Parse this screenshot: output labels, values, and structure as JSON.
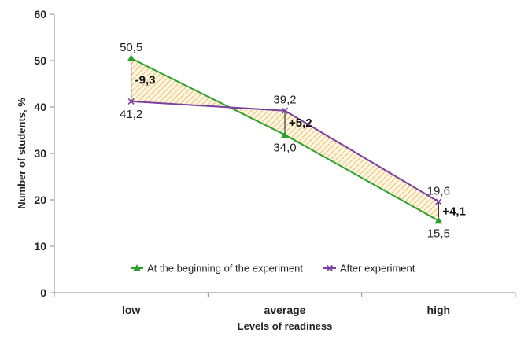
{
  "chart_data": {
    "type": "line",
    "title": "",
    "xlabel": "Levels of readiness",
    "ylabel": "Number of students, %",
    "categories": [
      "low",
      "average",
      "high"
    ],
    "ylim": [
      0,
      60
    ],
    "yticks": [
      "0",
      "10",
      "20",
      "30",
      "40",
      "50",
      "60"
    ],
    "grid": false,
    "legend_position": "lower-center",
    "series": [
      {
        "name": "At the beginning of the experiment",
        "values": [
          50.5,
          34.0,
          15.5
        ],
        "labels": [
          "50,5",
          "34,0",
          "15,5"
        ],
        "color": "#2ca02c",
        "marker": "triangle"
      },
      {
        "name": "After experiment",
        "values": [
          41.2,
          39.2,
          19.6
        ],
        "labels": [
          "41,2",
          "39,2",
          "19,6"
        ],
        "color": "#7b3fa0",
        "marker": "x"
      }
    ],
    "differences": [
      "-9,3",
      "+5,2",
      "+4,1"
    ],
    "fill_color": "#e8a83a"
  }
}
